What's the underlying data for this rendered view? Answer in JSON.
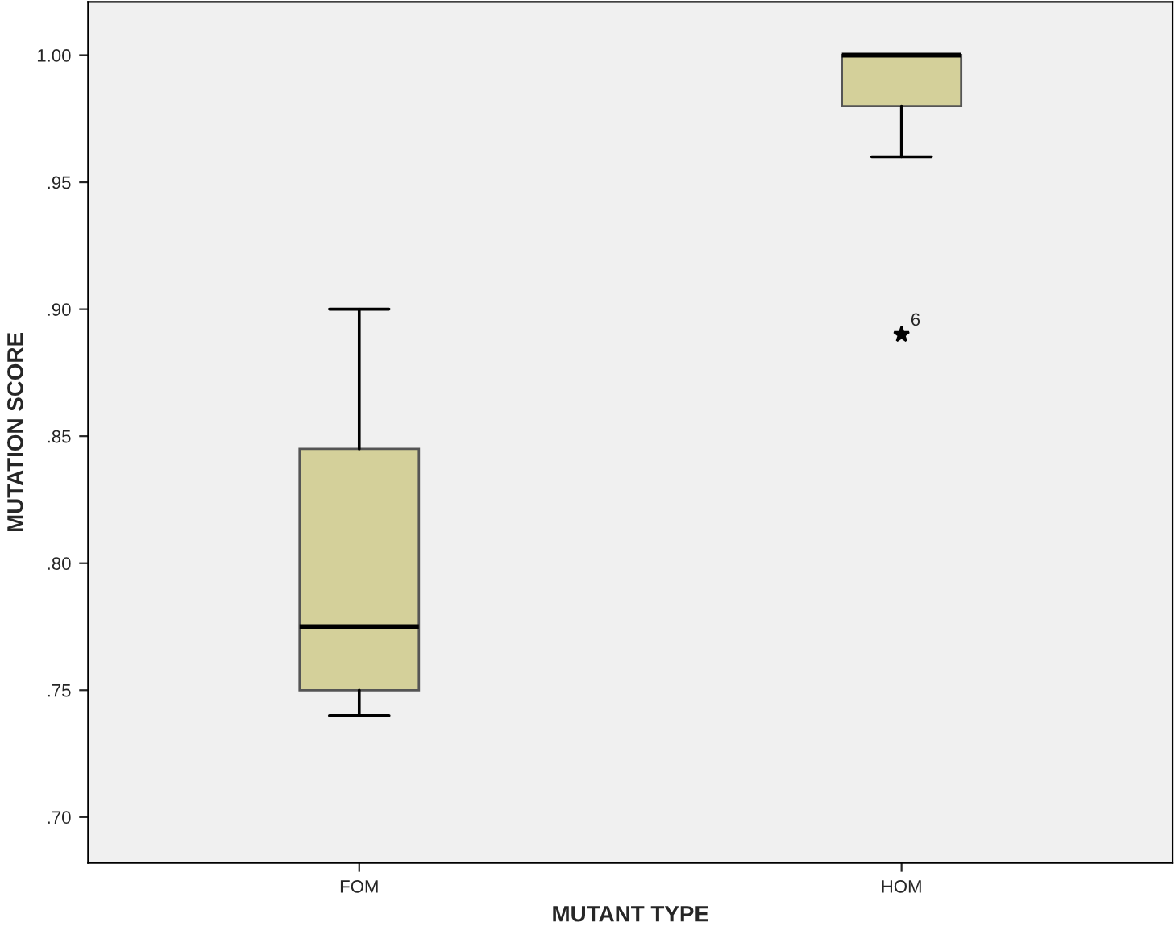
{
  "chart_data": {
    "type": "box",
    "xlabel": "MUTANT TYPE",
    "ylabel": "MUTATION SCORE",
    "categories": [
      "FOM",
      "HOM"
    ],
    "boxes": [
      {
        "low": 0.74,
        "q1": 0.75,
        "median": 0.775,
        "q3": 0.845,
        "high": 0.9
      },
      {
        "low": 0.96,
        "q1": 0.98,
        "median": 1.0,
        "q3": 1.0,
        "high": 1.0,
        "outliers": [
          0.89
        ]
      }
    ],
    "colors": [
      "#d4d09a",
      "#d4d09a"
    ],
    "ylim": [
      0.682,
      1.021
    ],
    "yticks": [
      {
        "value": 0.7,
        "label": ".70"
      },
      {
        "value": 0.75,
        "label": ".75"
      },
      {
        "value": 0.8,
        "label": ".80"
      },
      {
        "value": 0.85,
        "label": ".85"
      },
      {
        "value": 0.9,
        "label": ".90"
      },
      {
        "value": 0.95,
        "label": ".95"
      },
      {
        "value": 1.0,
        "label": "1.00"
      }
    ],
    "annotations": [
      "6"
    ],
    "grid": false
  }
}
